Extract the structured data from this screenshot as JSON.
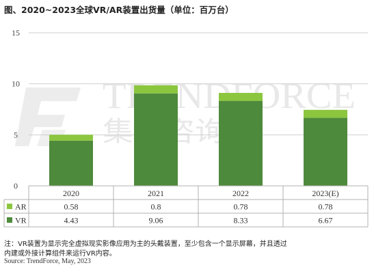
{
  "title": "图、2020~2023全球VR/AR装置出货量（单位：百万台）",
  "watermark": {
    "brand": "TRENDFORCE",
    "brand_cn": "集邦咨询"
  },
  "notes": [
    "注：VR装置为显示完全虚拟现实影像应用为主的头戴装置，至少包含一个显示屏幕，并且透过",
    "内建或外接计算组件来运行VR内容。"
  ],
  "source": "Source: TrendForce, May, 2023",
  "colors": {
    "AR": "#8cc63f",
    "VR": "#4e8a3c",
    "grid": "#cfcfcf",
    "watermark": "#e9e9e9"
  },
  "chart_data": {
    "type": "bar",
    "stacked": true,
    "categories": [
      "2020",
      "2021",
      "2022",
      "2023(E)"
    ],
    "series": [
      {
        "name": "AR",
        "values": [
          0.58,
          0.8,
          0.78,
          0.78
        ]
      },
      {
        "name": "VR",
        "values": [
          4.43,
          9.06,
          8.33,
          6.67
        ]
      }
    ],
    "table_rows": [
      {
        "label": "AR",
        "values": [
          "0.58",
          "0.8",
          "0.78",
          "0.78"
        ]
      },
      {
        "label": "VR",
        "values": [
          "4.43",
          "9.06",
          "8.33",
          "6.67"
        ]
      }
    ],
    "yticks": [
      "0",
      "5",
      "10",
      "15"
    ],
    "ylim": [
      0,
      15
    ],
    "grid": true,
    "legend": "data-table"
  }
}
